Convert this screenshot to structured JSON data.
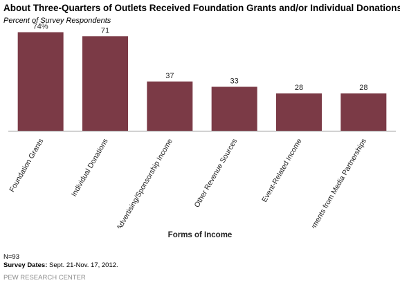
{
  "title": "About Three-Quarters  of Outlets Received Foundation Grants and/or Individual Donations",
  "subtitle": "Percent of Survey Respondents",
  "colors": {
    "bar": "#7b3a46",
    "axis": "#8c8c8c",
    "source_text": "#8a8a8a"
  },
  "chart_data": {
    "type": "bar",
    "categories": [
      "Foundation Grants",
      "Individual Donations",
      "Advertising/Sponsorship Income",
      "Other Revenue Sources",
      "Event-Related Income",
      "Payments  from Media Partnerships"
    ],
    "values": [
      74,
      71,
      37,
      33,
      28,
      28
    ],
    "data_labels": [
      "74%",
      "71",
      "37",
      "33",
      "28",
      "28"
    ],
    "title": "About Three-Quarters  of Outlets Received Foundation Grants and/or Individual Donations",
    "xlabel": "Forms of Income",
    "ylabel": "",
    "ylim": [
      0,
      80
    ],
    "grid": false,
    "legend": "none"
  },
  "notes": {
    "n": "N=93",
    "dates_label": "Survey Dates:",
    "dates_value": " Sept. 21-Nov. 17, 2012."
  },
  "source": "PEW RESEARCH CENTER"
}
